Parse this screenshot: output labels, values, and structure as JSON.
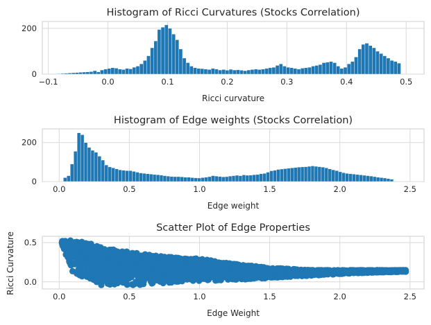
{
  "chart_data": [
    {
      "type": "bar",
      "title": "Histogram of Ricci Curvatures (Stocks Correlation)",
      "xlabel": "Ricci curvature",
      "ylabel": "",
      "xlim": [
        -0.11,
        0.53
      ],
      "ylim": [
        0,
        230
      ],
      "x_ticks": [
        -0.1,
        0.0,
        0.1,
        0.2,
        0.3,
        0.4,
        0.5
      ],
      "x_tick_labels": [
        "−0.1",
        "0.0",
        "0.1",
        "0.2",
        "0.3",
        "0.4",
        "0.5"
      ],
      "y_ticks": [
        0,
        200
      ],
      "y_tick_labels": [
        "0",
        "200"
      ],
      "bin_start": -0.085,
      "bin_width": 0.006,
      "values": [
        2,
        3,
        4,
        5,
        6,
        7,
        8,
        9,
        10,
        11,
        15,
        10,
        18,
        22,
        25,
        28,
        26,
        22,
        20,
        25,
        23,
        30,
        35,
        45,
        60,
        80,
        115,
        145,
        195,
        205,
        215,
        200,
        175,
        150,
        110,
        70,
        50,
        35,
        28,
        25,
        24,
        22,
        20,
        25,
        22,
        18,
        20,
        17,
        21,
        18,
        19,
        17,
        15,
        18,
        20,
        22,
        20,
        22,
        25,
        28,
        30,
        38,
        45,
        35,
        30,
        28,
        25,
        22,
        26,
        28,
        30,
        35,
        38,
        42,
        50,
        52,
        55,
        50,
        35,
        25,
        30,
        45,
        55,
        75,
        110,
        130,
        135,
        125,
        115,
        100,
        90,
        80,
        70,
        60,
        55,
        48
      ]
    },
    {
      "type": "bar",
      "title": "Histogram of Edge weights (Stocks Correlation)",
      "xlabel": "Edge weight",
      "ylabel": "",
      "xlim": [
        -0.12,
        2.6
      ],
      "ylim": [
        0,
        270
      ],
      "x_ticks": [
        0.0,
        0.5,
        1.0,
        1.5,
        2.0,
        2.5
      ],
      "x_tick_labels": [
        "0.0",
        "0.5",
        "1.0",
        "1.5",
        "2.0",
        "2.5"
      ],
      "y_ticks": [
        0,
        200
      ],
      "y_tick_labels": [
        "0",
        "200"
      ],
      "bin_start": 0.03,
      "bin_width": 0.0245,
      "values": [
        20,
        30,
        90,
        155,
        250,
        240,
        200,
        175,
        160,
        150,
        130,
        110,
        85,
        75,
        70,
        65,
        60,
        58,
        56,
        56,
        52,
        48,
        44,
        42,
        40,
        38,
        36,
        35,
        33,
        30,
        28,
        26,
        25,
        25,
        24,
        22,
        22,
        20,
        19,
        18,
        20,
        22,
        25,
        30,
        28,
        26,
        24,
        25,
        28,
        30,
        32,
        30,
        34,
        32,
        33,
        35,
        36,
        40,
        42,
        48,
        55,
        58,
        62,
        64,
        66,
        68,
        70,
        72,
        74,
        75,
        76,
        78,
        80,
        78,
        76,
        74,
        70,
        65,
        60,
        56,
        50,
        45,
        42,
        40,
        38,
        36,
        34,
        32,
        30,
        28,
        25,
        22,
        20,
        18,
        15,
        12
      ]
    },
    {
      "type": "scatter",
      "title": "Scatter Plot of Edge Properties",
      "xlabel": "Edge Weight",
      "ylabel": "Ricci Curvature",
      "xlim": [
        -0.12,
        2.6
      ],
      "ylim": [
        -0.09,
        0.58
      ],
      "x_ticks": [
        0.0,
        0.5,
        1.0,
        1.5,
        2.0,
        2.5
      ],
      "x_tick_labels": [
        "0.0",
        "0.5",
        "1.0",
        "1.5",
        "2.0",
        "2.5"
      ],
      "y_ticks": [
        0.0,
        0.5
      ],
      "y_tick_labels": [
        "0.0",
        "0.5"
      ],
      "envelope_weight": [
        0.02,
        0.1,
        0.2,
        0.3,
        0.5,
        0.7,
        0.9,
        1.0,
        1.2,
        1.5,
        1.8,
        2.1,
        2.47
      ],
      "envelope_curvature_upper": [
        0.52,
        0.53,
        0.5,
        0.44,
        0.38,
        0.33,
        0.3,
        0.3,
        0.24,
        0.18,
        0.15,
        0.15,
        0.15
      ],
      "envelope_curvature_lower": [
        0.47,
        0.1,
        0.02,
        -0.04,
        -0.05,
        -0.02,
        0.0,
        0.01,
        0.02,
        0.05,
        0.08,
        0.11,
        0.13
      ],
      "point_count": 2400,
      "outliers": [
        [
          0.3,
          -0.04
        ],
        [
          0.35,
          -0.02
        ],
        [
          0.42,
          0.3
        ],
        [
          0.55,
          0.32
        ],
        [
          0.62,
          0.22
        ],
        [
          0.8,
          0.03
        ],
        [
          1.05,
          0.05
        ],
        [
          0.15,
          0.1
        ]
      ]
    }
  ]
}
